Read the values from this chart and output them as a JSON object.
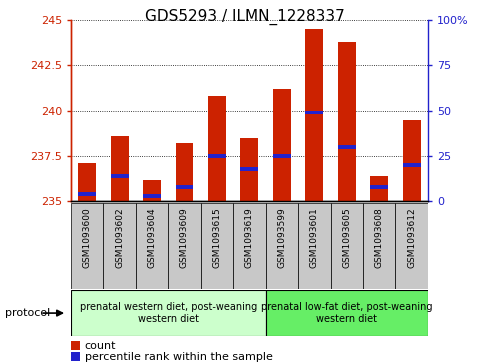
{
  "title": "GDS5293 / ILMN_1228337",
  "samples": [
    "GSM1093600",
    "GSM1093602",
    "GSM1093604",
    "GSM1093609",
    "GSM1093615",
    "GSM1093619",
    "GSM1093599",
    "GSM1093601",
    "GSM1093605",
    "GSM1093608",
    "GSM1093612"
  ],
  "count_values": [
    237.1,
    238.6,
    236.2,
    238.2,
    240.8,
    238.5,
    241.2,
    244.5,
    243.8,
    236.4,
    239.5
  ],
  "percentile_values": [
    4,
    14,
    3,
    8,
    25,
    18,
    25,
    49,
    30,
    8,
    20
  ],
  "baseline": 235.0,
  "ylim_left": [
    235,
    245
  ],
  "ylim_right": [
    0,
    100
  ],
  "yticks_left": [
    235,
    237.5,
    240,
    242.5,
    245
  ],
  "yticks_right": [
    0,
    25,
    50,
    75,
    100
  ],
  "ytick_right_labels": [
    "0",
    "25",
    "50",
    "75",
    "100%"
  ],
  "group0_count": 6,
  "group0_label": "prenatal western diet, post-weaning\nwestern diet",
  "group0_color": "#ccffcc",
  "group1_label": "prenatal low-fat diet, post-weaning\nwestern diet",
  "group1_color": "#66ee66",
  "protocol_label": "protocol",
  "bar_color": "#cc2200",
  "percentile_color": "#2222cc",
  "bar_width": 0.55,
  "left_axis_color": "#cc2200",
  "right_axis_color": "#2222cc",
  "tick_bg_color": "#c8c8c8",
  "legend_count_label": "count",
  "legend_pct_label": "percentile rank within the sample",
  "title_fontsize": 11
}
